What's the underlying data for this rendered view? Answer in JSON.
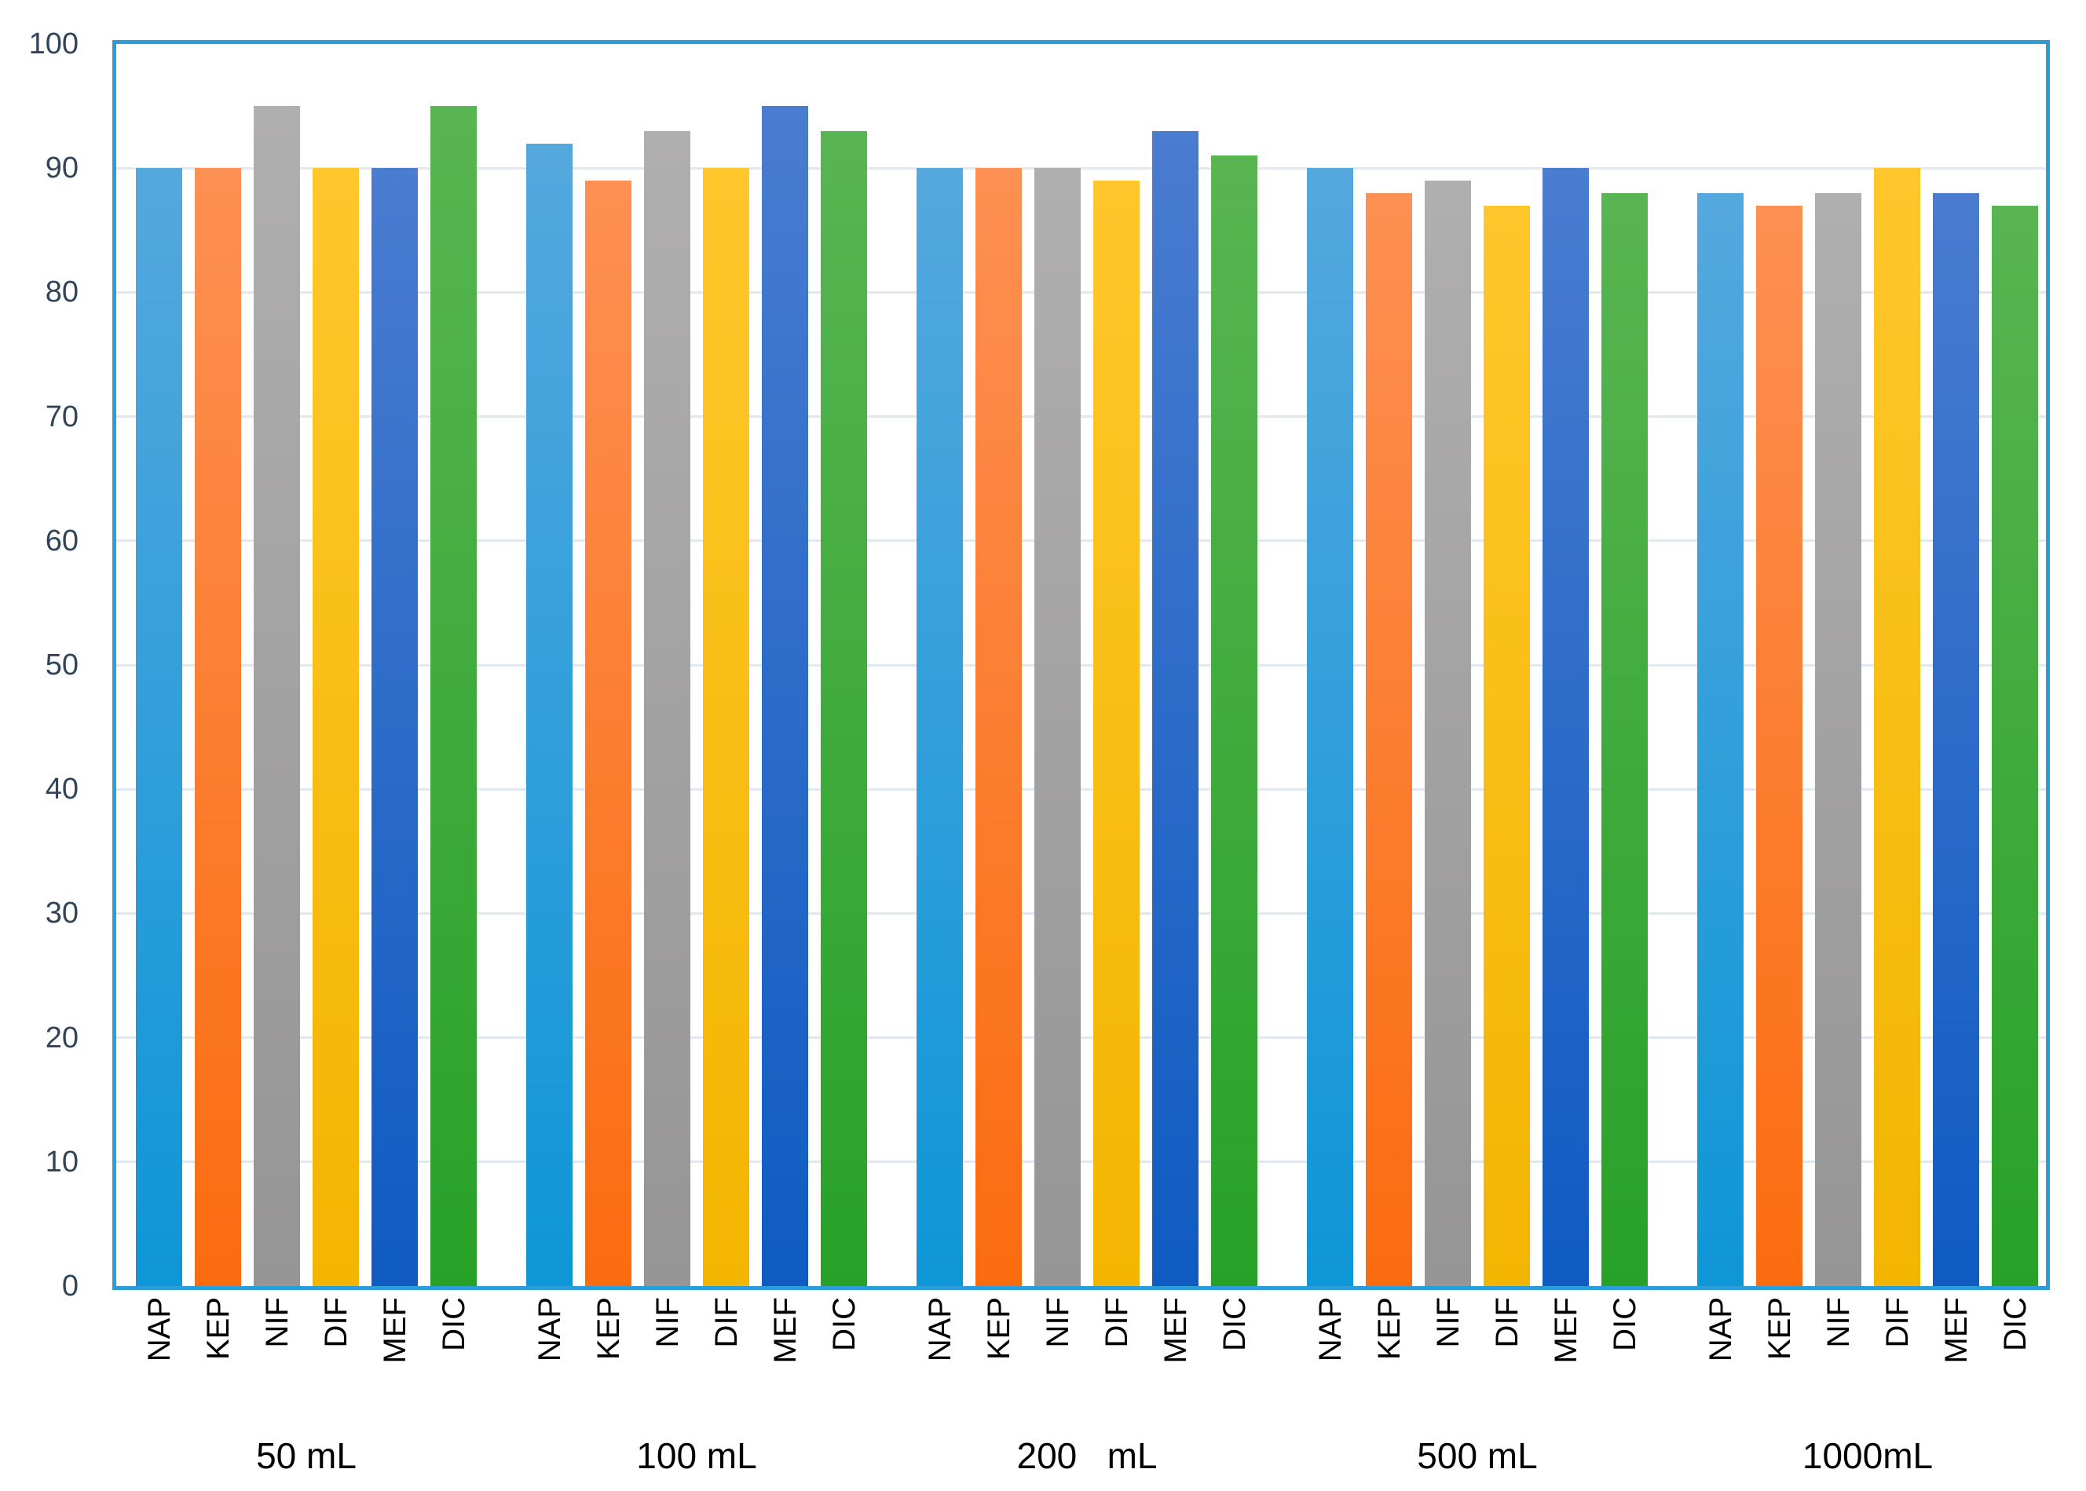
{
  "chart_data": {
    "type": "bar",
    "title": "",
    "xlabel": "",
    "ylabel": "",
    "categories": [
      "50 mL",
      "100 mL",
      "200   mL",
      "500 mL",
      "1000mL"
    ],
    "series_labels": [
      "NAP",
      "KEP",
      "NIF",
      "DIF",
      "MEF",
      "DIC"
    ],
    "series": [
      {
        "name": "NAP",
        "color_top": "#55A8DE",
        "color_bottom": "#0E96D7",
        "values": [
          90,
          92,
          90,
          90,
          88
        ]
      },
      {
        "name": "KEP",
        "color_top": "#FD9053",
        "color_bottom": "#FB6C0F",
        "values": [
          90,
          89,
          90,
          88,
          87
        ]
      },
      {
        "name": "NIF",
        "color_top": "#B0AFAF",
        "color_bottom": "#969595",
        "values": [
          95,
          93,
          90,
          89,
          88
        ]
      },
      {
        "name": "DIF",
        "color_top": "#FFC72B",
        "color_bottom": "#F3B500",
        "values": [
          90,
          90,
          89,
          87,
          90
        ]
      },
      {
        "name": "MEF",
        "color_top": "#4A7CD0",
        "color_bottom": "#0F5BC2",
        "values": [
          90,
          95,
          93,
          90,
          88
        ]
      },
      {
        "name": "DIC",
        "color_top": "#59B552",
        "color_bottom": "#28A128",
        "values": [
          95,
          93,
          91,
          88,
          87
        ]
      }
    ],
    "ylim": [
      0,
      100
    ],
    "yticks": [
      0,
      10,
      20,
      30,
      40,
      50,
      60,
      70,
      80,
      90,
      100
    ],
    "grid": true,
    "legend": "none",
    "axis_color": "#2B9DD9",
    "gridline_color": "#E2E8F0",
    "ytick_color": "#31455A",
    "xtick_color": "#000000",
    "plot_background": "#FFFFFF"
  }
}
